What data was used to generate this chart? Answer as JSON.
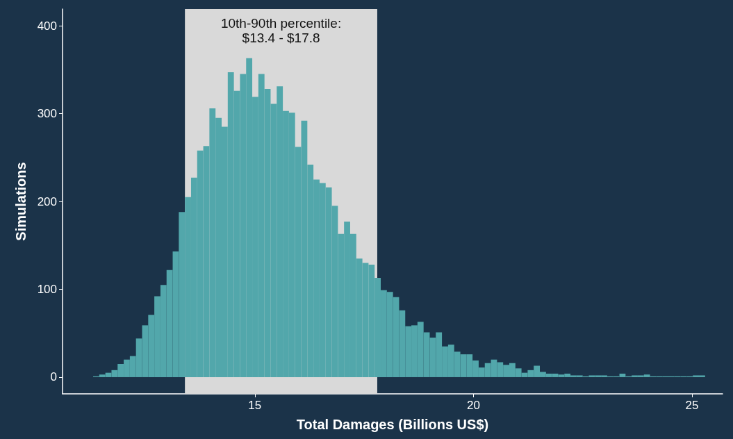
{
  "chart_data": {
    "type": "histogram",
    "xlabel": "Total Damages (Billions US$)",
    "ylabel": "Simulations",
    "bins": [
      11.3,
      11.44,
      11.58,
      11.72,
      11.86,
      12.0,
      12.14,
      12.28,
      12.42,
      12.56,
      12.7,
      12.84,
      12.98,
      13.12,
      13.26,
      13.4,
      13.54,
      13.68,
      13.82,
      13.96,
      14.1,
      14.24,
      14.38,
      14.52,
      14.66,
      14.8,
      14.94,
      15.08,
      15.22,
      15.36,
      15.5,
      15.64,
      15.78,
      15.92,
      16.06,
      16.2,
      16.34,
      16.48,
      16.62,
      16.76,
      16.9,
      17.04,
      17.18,
      17.32,
      17.46,
      17.6,
      17.74,
      17.88,
      18.02,
      18.16,
      18.3,
      18.44,
      18.58,
      18.72,
      18.86,
      19.0,
      19.14,
      19.28,
      19.42,
      19.56,
      19.7,
      19.84,
      19.98,
      20.12,
      20.26,
      20.4,
      20.54,
      20.68,
      20.82,
      20.96,
      21.1,
      21.24,
      21.38,
      21.52,
      21.66,
      21.8,
      21.94,
      22.08,
      22.22,
      22.36,
      22.5,
      22.64,
      22.78,
      22.92,
      23.06,
      23.2,
      23.34,
      23.48,
      23.62,
      23.76,
      23.9,
      24.04,
      24.18,
      24.32,
      24.46,
      24.6,
      24.74,
      24.88,
      25.02,
      25.16,
      25.3
    ],
    "values": [
      1,
      3,
      5,
      8,
      15,
      20,
      24,
      44,
      59,
      71,
      92,
      105,
      122,
      143,
      188,
      205,
      227,
      258,
      263,
      306,
      295,
      285,
      347,
      326,
      345,
      363,
      319,
      345,
      328,
      311,
      331,
      303,
      301,
      262,
      292,
      242,
      225,
      221,
      216,
      195,
      163,
      177,
      163,
      135,
      130,
      128,
      113,
      99,
      97,
      91,
      76,
      58,
      59,
      63,
      51,
      45,
      51,
      35,
      37,
      29,
      26,
      26,
      19,
      11,
      16,
      20,
      17,
      14,
      16,
      10,
      5,
      8,
      13,
      6,
      4,
      4,
      3,
      4,
      2,
      2,
      1,
      2,
      2,
      2,
      1,
      1,
      4,
      1,
      2,
      2,
      3,
      1,
      1,
      1,
      1,
      1,
      1,
      1,
      2,
      2
    ],
    "color": "#52a7ab",
    "xlim": [
      10.6,
      25.7
    ],
    "ylim": [
      -19,
      419
    ],
    "xticks": [
      15,
      20,
      25
    ],
    "yticks": [
      0,
      100,
      200,
      300,
      400
    ],
    "bands": [
      {
        "axis": "x",
        "from": 13.4,
        "to": 17.8,
        "label": "10th-90th percentile:\n$13.4 - $17.8",
        "color": "#d9d9d9"
      }
    ],
    "grid": false
  }
}
